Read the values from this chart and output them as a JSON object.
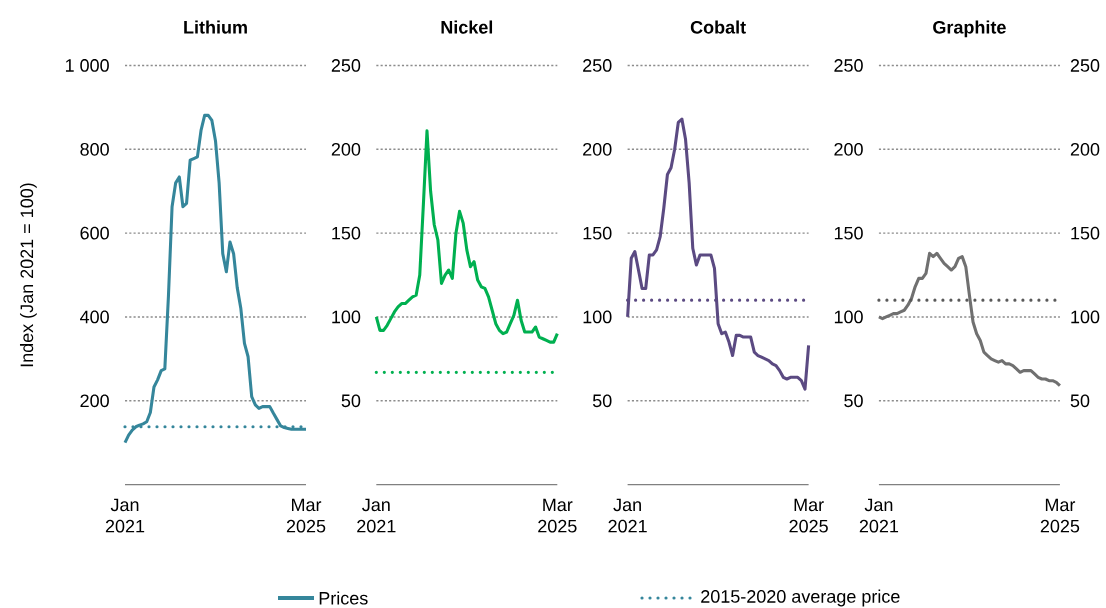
{
  "chart_data": [
    {
      "type": "line",
      "title": "Lithium",
      "ylabel": "Index (Jan 2021 = 100)",
      "xlim": [
        "2021-01",
        "2025-03"
      ],
      "xticks": [
        {
          "value": "2021-01",
          "label": "Jan 2021"
        },
        {
          "value": "2025-03",
          "label": "Mar 2025"
        }
      ],
      "ylim": [
        0,
        1000
      ],
      "yticks": [
        200,
        400,
        600,
        800,
        {
          "value": 1000,
          "label": "1 000"
        }
      ],
      "grid": "y",
      "legend": "bottom",
      "x": [
        "2021-01",
        "2021-02",
        "2021-03",
        "2021-04",
        "2021-05",
        "2021-06",
        "2021-07",
        "2021-08",
        "2021-09",
        "2021-10",
        "2021-11",
        "2021-12",
        "2022-01",
        "2022-02",
        "2022-03",
        "2022-04",
        "2022-05",
        "2022-06",
        "2022-07",
        "2022-08",
        "2022-09",
        "2022-10",
        "2022-11",
        "2022-12",
        "2023-01",
        "2023-02",
        "2023-03",
        "2023-04",
        "2023-05",
        "2023-06",
        "2023-07",
        "2023-08",
        "2023-09",
        "2023-10",
        "2023-11",
        "2023-12",
        "2024-01",
        "2024-02",
        "2024-03",
        "2024-04",
        "2024-05",
        "2024-06",
        "2024-07",
        "2024-08",
        "2024-09",
        "2024-10",
        "2024-11",
        "2024-12",
        "2025-01",
        "2025-02",
        "2025-03"
      ],
      "series": [
        {
          "name": "Prices",
          "color": "#35869b",
          "values": [
            100,
            118,
            130,
            138,
            142,
            145,
            150,
            172,
            233,
            250,
            272,
            276,
            450,
            663,
            720,
            734,
            663,
            671,
            774,
            778,
            782,
            845,
            881,
            881,
            869,
            820,
            720,
            551,
            508,
            579,
            551,
            470,
            420,
            337,
            305,
            210,
            190,
            182,
            186,
            186,
            186,
            170,
            155,
            140,
            136,
            134,
            132,
            132,
            132,
            132,
            132
          ]
        }
      ],
      "ref_lines": [
        {
          "axis": "y",
          "value": 138,
          "label": "2015-2020 average price",
          "color": "#35869b",
          "line_style": "dotted"
        }
      ]
    },
    {
      "type": "line",
      "title": "Nickel",
      "xlim": [
        "2021-01",
        "2025-03"
      ],
      "xticks": [
        {
          "value": "2021-01",
          "label": "Jan 2021"
        },
        {
          "value": "2025-03",
          "label": "Mar 2025"
        }
      ],
      "ylim": [
        0,
        250
      ],
      "yticks": [
        50,
        100,
        150,
        200,
        250
      ],
      "grid": "y",
      "x": [
        "2021-01",
        "2021-02",
        "2021-03",
        "2021-04",
        "2021-05",
        "2021-06",
        "2021-07",
        "2021-08",
        "2021-09",
        "2021-10",
        "2021-11",
        "2021-12",
        "2022-01",
        "2022-02",
        "2022-03",
        "2022-04",
        "2022-05",
        "2022-06",
        "2022-07",
        "2022-08",
        "2022-09",
        "2022-10",
        "2022-11",
        "2022-12",
        "2023-01",
        "2023-02",
        "2023-03",
        "2023-04",
        "2023-05",
        "2023-06",
        "2023-07",
        "2023-08",
        "2023-09",
        "2023-10",
        "2023-11",
        "2023-12",
        "2024-01",
        "2024-02",
        "2024-03",
        "2024-04",
        "2024-05",
        "2024-06",
        "2024-07",
        "2024-08",
        "2024-09",
        "2024-10",
        "2024-11",
        "2024-12",
        "2025-01",
        "2025-02",
        "2025-03"
      ],
      "series": [
        {
          "color": "#00b050",
          "values": [
            100,
            92,
            92,
            95,
            99,
            103,
            106,
            108,
            108,
            110,
            112,
            113,
            125,
            167,
            211,
            175,
            155,
            146,
            120,
            125,
            128,
            123,
            150,
            163,
            156,
            140,
            130,
            133,
            122,
            118,
            117,
            112,
            104,
            96,
            92,
            90,
            91,
            96,
            101,
            110,
            98,
            91,
            91,
            91,
            94,
            88,
            87,
            86,
            85,
            85,
            90
          ]
        }
      ],
      "ref_lines": [
        {
          "axis": "y",
          "value": 67,
          "color": "#00b050",
          "line_style": "dotted"
        }
      ]
    },
    {
      "type": "line",
      "title": "Cobalt",
      "xlim": [
        "2021-01",
        "2025-03"
      ],
      "xticks": [
        {
          "value": "2021-01",
          "label": "Jan 2021"
        },
        {
          "value": "2025-03",
          "label": "Mar 2025"
        }
      ],
      "ylim": [
        0,
        250
      ],
      "yticks": [
        50,
        100,
        150,
        200,
        250
      ],
      "grid": "y",
      "x": [
        "2021-01",
        "2021-02",
        "2021-03",
        "2021-04",
        "2021-05",
        "2021-06",
        "2021-07",
        "2021-08",
        "2021-09",
        "2021-10",
        "2021-11",
        "2021-12",
        "2022-01",
        "2022-02",
        "2022-03",
        "2022-04",
        "2022-05",
        "2022-06",
        "2022-07",
        "2022-08",
        "2022-09",
        "2022-10",
        "2022-11",
        "2022-12",
        "2023-01",
        "2023-02",
        "2023-03",
        "2023-04",
        "2023-05",
        "2023-06",
        "2023-07",
        "2023-08",
        "2023-09",
        "2023-10",
        "2023-11",
        "2023-12",
        "2024-01",
        "2024-02",
        "2024-03",
        "2024-04",
        "2024-05",
        "2024-06",
        "2024-07",
        "2024-08",
        "2024-09",
        "2024-10",
        "2024-11",
        "2024-12",
        "2025-01",
        "2025-02",
        "2025-03"
      ],
      "series": [
        {
          "color": "#5b4a82",
          "values": [
            100,
            135,
            139,
            128,
            117,
            117,
            137,
            137,
            140,
            148,
            165,
            185,
            189,
            200,
            216,
            218,
            206,
            180,
            141,
            131,
            137,
            137,
            137,
            137,
            129,
            96,
            90,
            91,
            85,
            77,
            89,
            89,
            88,
            88,
            88,
            79,
            77,
            76,
            75,
            74,
            72,
            71,
            68,
            64,
            63,
            64,
            64,
            64,
            62,
            57,
            83
          ]
        }
      ],
      "ref_lines": [
        {
          "axis": "y",
          "value": 110,
          "color": "#5b4a82",
          "line_style": "dotted"
        }
      ]
    },
    {
      "type": "line",
      "title": "Graphite",
      "xlim": [
        "2021-01",
        "2025-03"
      ],
      "xticks": [
        {
          "value": "2021-01",
          "label": "Jan 2021"
        },
        {
          "value": "2025-03",
          "label": "Mar 2025"
        }
      ],
      "ylim": [
        0,
        250
      ],
      "yticks": [
        50,
        100,
        150,
        200,
        250
      ],
      "y2lim": [
        0,
        250
      ],
      "y2ticks": [
        50,
        100,
        150,
        200,
        250
      ],
      "grid": "y",
      "x": [
        "2021-01",
        "2021-02",
        "2021-03",
        "2021-04",
        "2021-05",
        "2021-06",
        "2021-07",
        "2021-08",
        "2021-09",
        "2021-10",
        "2021-11",
        "2021-12",
        "2022-01",
        "2022-02",
        "2022-03",
        "2022-04",
        "2022-05",
        "2022-06",
        "2022-07",
        "2022-08",
        "2022-09",
        "2022-10",
        "2022-11",
        "2022-12",
        "2023-01",
        "2023-02",
        "2023-03",
        "2023-04",
        "2023-05",
        "2023-06",
        "2023-07",
        "2023-08",
        "2023-09",
        "2023-10",
        "2023-11",
        "2023-12",
        "2024-01",
        "2024-02",
        "2024-03",
        "2024-04",
        "2024-05",
        "2024-06",
        "2024-07",
        "2024-08",
        "2024-09",
        "2024-10",
        "2024-11",
        "2024-12",
        "2025-01",
        "2025-02",
        "2025-03"
      ],
      "series": [
        {
          "color": "#707070",
          "values": [
            100,
            99,
            100,
            101,
            102,
            102,
            103,
            104,
            107,
            111,
            118,
            123,
            123,
            126,
            138,
            136,
            138,
            135,
            132,
            130,
            128,
            130,
            135,
            136,
            130,
            113,
            97,
            90,
            86,
            79,
            77,
            75,
            74,
            73,
            74,
            72,
            72,
            71,
            69,
            67,
            68,
            68,
            68,
            66,
            64,
            63,
            63,
            62,
            62,
            61,
            59
          ]
        }
      ],
      "ref_lines": [
        {
          "axis": "y",
          "value": 110,
          "color": "#595959",
          "line_style": "dotted"
        }
      ]
    }
  ]
}
